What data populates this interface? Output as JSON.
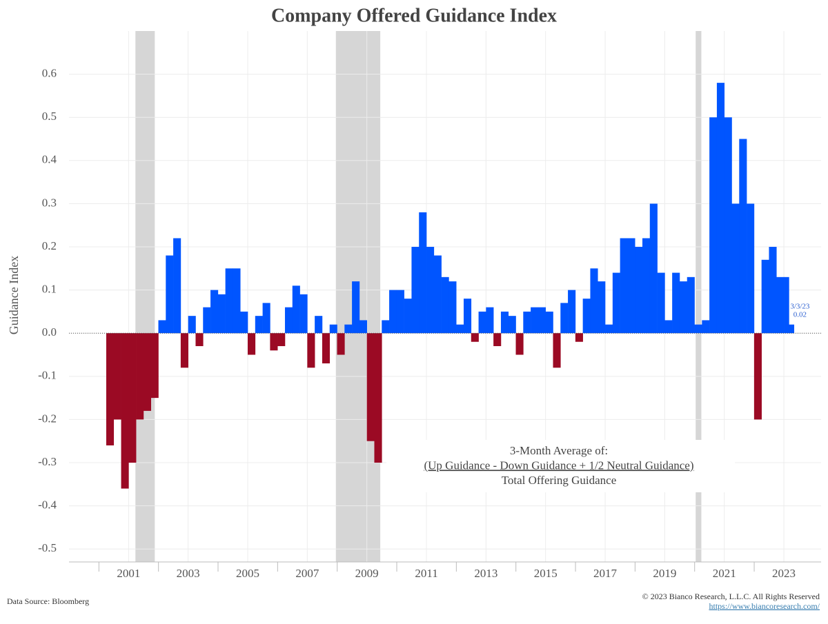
{
  "chart_data": {
    "type": "bar",
    "title": "Company Offered Guidance Index",
    "y_label": "Guidance Index",
    "x": [
      2000.25,
      2000.5,
      2000.75,
      2001.0,
      2001.25,
      2001.5,
      2001.75,
      2002.0,
      2002.25,
      2002.5,
      2002.75,
      2003.0,
      2003.25,
      2003.5,
      2003.75,
      2004.0,
      2004.25,
      2004.5,
      2004.75,
      2005.0,
      2005.25,
      2005.5,
      2005.75,
      2006.0,
      2006.25,
      2006.5,
      2006.75,
      2007.0,
      2007.25,
      2007.5,
      2007.75,
      2008.0,
      2008.25,
      2008.5,
      2008.75,
      2009.0,
      2009.25,
      2009.5,
      2009.75,
      2010.0,
      2010.25,
      2010.5,
      2010.75,
      2011.0,
      2011.25,
      2011.5,
      2011.75,
      2012.0,
      2012.25,
      2012.5,
      2012.75,
      2013.0,
      2013.25,
      2013.5,
      2013.75,
      2014.0,
      2014.25,
      2014.5,
      2014.75,
      2015.0,
      2015.25,
      2015.5,
      2015.75,
      2016.0,
      2016.25,
      2016.5,
      2016.75,
      2017.0,
      2017.25,
      2017.5,
      2017.75,
      2018.0,
      2018.25,
      2018.5,
      2018.75,
      2019.0,
      2019.25,
      2019.5,
      2019.75,
      2020.0,
      2020.25,
      2020.5,
      2020.75,
      2021.0,
      2021.25,
      2021.5,
      2021.75,
      2022.0,
      2022.25,
      2022.5,
      2022.75,
      2023.0,
      2023.17
    ],
    "values": [
      -0.26,
      -0.2,
      -0.36,
      -0.3,
      -0.2,
      -0.18,
      -0.15,
      0.03,
      0.18,
      0.22,
      -0.08,
      0.04,
      -0.03,
      0.06,
      0.1,
      0.09,
      0.15,
      0.15,
      0.05,
      -0.05,
      0.04,
      0.07,
      -0.04,
      -0.03,
      0.06,
      0.11,
      0.09,
      -0.08,
      0.04,
      -0.07,
      0.02,
      -0.05,
      0.02,
      0.12,
      0.03,
      -0.25,
      -0.3,
      0.03,
      0.1,
      0.1,
      0.08,
      0.2,
      0.28,
      0.2,
      0.18,
      0.13,
      0.12,
      0.02,
      0.08,
      -0.02,
      0.05,
      0.06,
      -0.03,
      0.05,
      0.04,
      -0.05,
      0.05,
      0.06,
      0.06,
      0.05,
      -0.08,
      0.07,
      0.1,
      -0.02,
      0.08,
      0.15,
      0.12,
      0.02,
      0.14,
      0.22,
      0.22,
      0.2,
      0.22,
      0.3,
      0.14,
      0.03,
      0.14,
      0.12,
      0.13,
      0.02,
      0.03,
      0.5,
      0.58,
      0.5,
      0.3,
      0.45,
      0.3,
      -0.2,
      0.17,
      0.2,
      0.13,
      0.13,
      0.02
    ],
    "positive_color": "#0055ff",
    "negative_color": "#9b0a24",
    "shaded_periods": [
      [
        2001.23,
        2001.88
      ],
      [
        2007.96,
        2009.45
      ],
      [
        2020.04,
        2020.23
      ]
    ],
    "shade_color": "#d6d6d6",
    "xlim": [
      1999,
      2024.25
    ],
    "xticks": [
      2001,
      2003,
      2005,
      2007,
      2009,
      2011,
      2013,
      2015,
      2017,
      2019,
      2021,
      2023
    ],
    "ylim": [
      -0.53,
      0.7
    ],
    "yticks": [
      -0.5,
      -0.4,
      -0.3,
      -0.2,
      -0.1,
      {
        "value": 0,
        "label": "0.0"
      },
      0.1,
      0.2,
      0.3,
      0.4,
      0.5,
      0.6
    ],
    "grid": true,
    "annotation": [
      "3-Month Average of:",
      "(Up Guidance - Down Guidance + 1/2 Neutral Guidance)",
      "Total Offering Guidance"
    ],
    "last_date": "3/3/23",
    "last_value": 0.02,
    "source": "Data Source: Bloomberg",
    "copyright": "© 2023 Bianco Research, L.L.C. All Rights Reserved",
    "url": "https://www.biancoresearch.com/"
  }
}
